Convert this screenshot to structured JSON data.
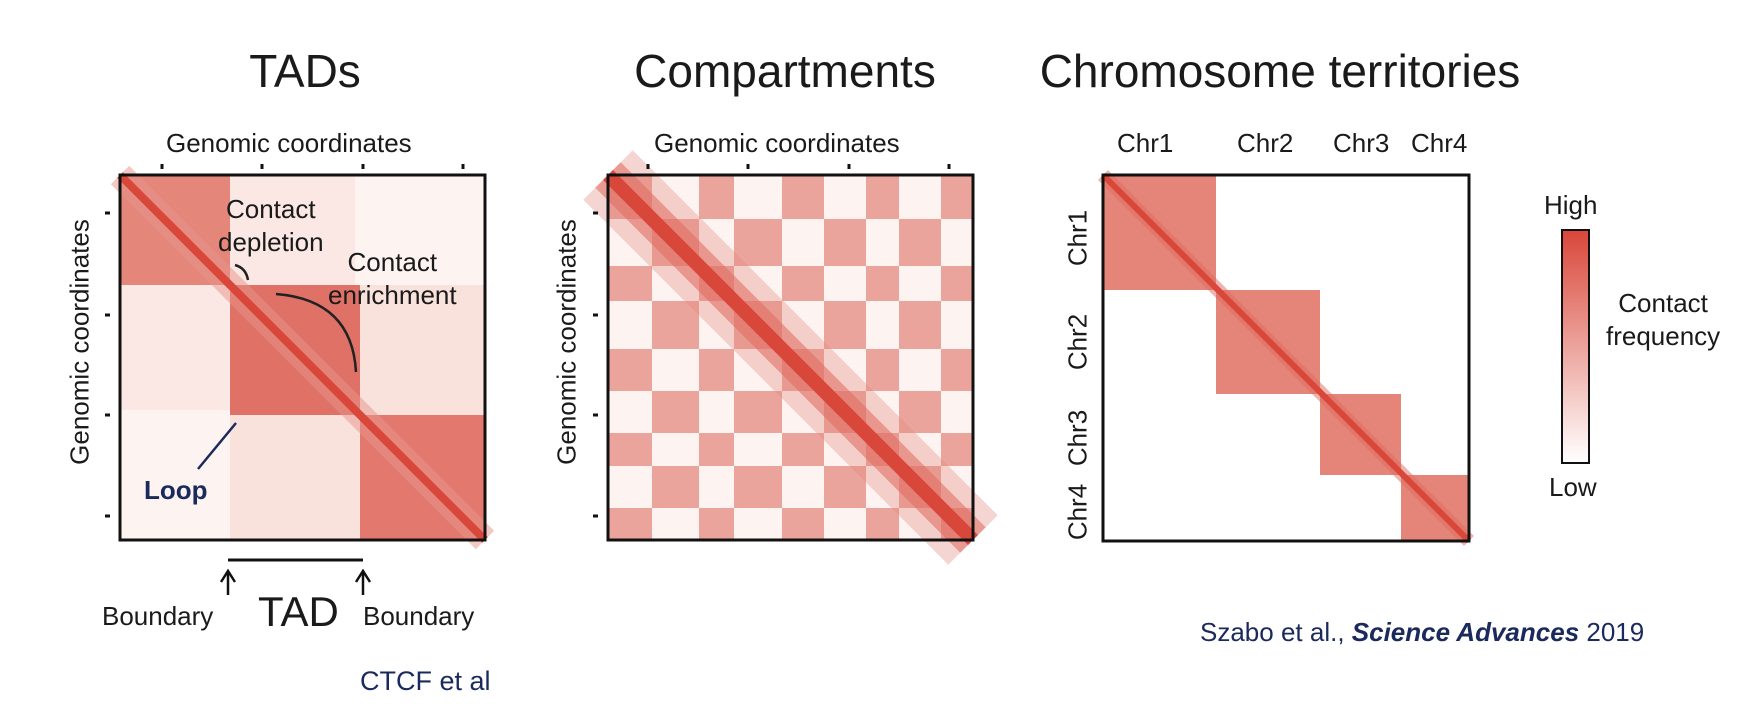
{
  "panels": {
    "tads": {
      "title": "TADs",
      "x_axis": "Genomic coordinates",
      "y_axis": "Genomic coordinates",
      "annotations": {
        "contact_depletion": [
          "Contact",
          "depletion"
        ],
        "contact_enrichment": [
          "Contact",
          "enrichment"
        ],
        "loop": "Loop",
        "boundary_left": "Boundary",
        "tad": "TAD",
        "boundary_right": "Boundary"
      }
    },
    "compartments": {
      "title": "Compartments",
      "x_axis": "Genomic coordinates",
      "y_axis": "Genomic coordinates"
    },
    "territories": {
      "title": "Chromosome territories",
      "chromosomes": [
        "Chr1",
        "Chr2",
        "Chr3",
        "Chr4"
      ]
    }
  },
  "legend": {
    "high": "High",
    "low": "Low",
    "label": [
      "Contact",
      "frequency"
    ]
  },
  "footer": {
    "citation_authors": "Szabo et al., ",
    "citation_journal": "Science Advances",
    "citation_year": " 2019",
    "note": "CTCF et al"
  },
  "colors": {
    "contact_high": "#d9473a",
    "contact_low": "#ffffff",
    "annotation_blue": "#1b2a5c"
  }
}
